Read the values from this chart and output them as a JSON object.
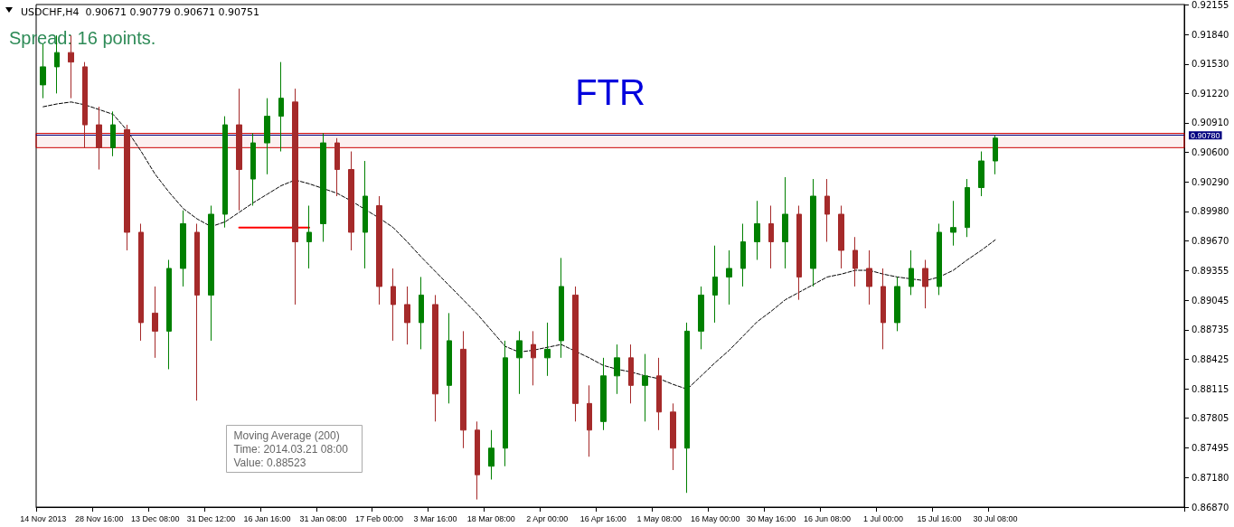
{
  "chart_data": {
    "type": "candlestick",
    "title": "USDCHF,H4  0.90671 0.90779 0.90671 0.90751",
    "categories": [
      "14 Nov 2013",
      null,
      null,
      null,
      "28 Nov 16:00",
      null,
      null,
      null,
      "13 Dec 08:00",
      null,
      null,
      null,
      "31 Dec 12:00",
      null,
      null,
      null,
      "16 Jan 16:00",
      null,
      null,
      null,
      "31 Jan 08:00",
      null,
      null,
      null,
      "17 Feb 00:00",
      null,
      null,
      null,
      "3 Mar 16:00",
      null,
      null,
      null,
      "18 Mar 08:00",
      null,
      null,
      null,
      "2 Apr 00:00",
      null,
      null,
      null,
      "16 Apr 16:00",
      null,
      null,
      null,
      "1 May 08:00",
      null,
      null,
      null,
      "16 May 00:00",
      null,
      null,
      null,
      "30 May 16:00",
      null,
      null,
      null,
      "16 Jun 08:00",
      null,
      null,
      null,
      "1 Jul 00:00",
      null,
      null,
      null,
      "15 Jul 16:00",
      null,
      null,
      null,
      "30 Jul 08:00",
      null,
      null,
      null,
      null,
      null,
      null,
      null,
      null,
      null,
      null,
      null,
      null,
      null
    ],
    "ylim": [
      0.8687,
      0.92155
    ],
    "yticks": [
      0.92155,
      {
        "value": 0.9184,
        "label": "0.91840"
      },
      {
        "value": 0.9153,
        "label": "0.91530"
      },
      {
        "value": 0.9122,
        "label": "0.91220"
      },
      {
        "value": 0.9091,
        "label": "0.90910"
      },
      {
        "value": 0.906,
        "label": "0.90600"
      },
      {
        "value": 0.9029,
        "label": "0.90290"
      },
      {
        "value": 0.8998,
        "label": "0.89980"
      },
      {
        "value": 0.8967,
        "label": "0.89670"
      },
      0.89355,
      0.89045,
      0.88735,
      0.88425,
      0.88115,
      0.87805,
      0.87495,
      {
        "value": 0.8718,
        "label": "0.87180"
      },
      {
        "value": 0.8687,
        "label": "0.86870"
      }
    ],
    "series": [
      {
        "type": "candlestick",
        "ohlc": [
          [
            0.9131,
            0.9174,
            0.9117,
            0.915
          ],
          [
            0.915,
            0.9183,
            0.9122,
            0.9165
          ],
          [
            0.9165,
            0.9183,
            0.9117,
            0.9155
          ],
          [
            0.915,
            0.9155,
            0.9065,
            0.9089
          ],
          [
            0.9089,
            0.9108,
            0.9042,
            0.9065
          ],
          [
            0.9065,
            0.9103,
            0.9056,
            0.9089
          ],
          [
            0.9084,
            0.9089,
            0.8957,
            0.8976
          ],
          [
            0.8976,
            0.8985,
            0.8862,
            0.8881
          ],
          [
            0.8891,
            0.8919,
            0.8844,
            0.8872
          ],
          [
            0.8872,
            0.8947,
            0.8832,
            0.8938
          ],
          [
            0.8938,
            0.8999,
            0.8919,
            0.8985
          ],
          [
            0.8976,
            0.8985,
            0.8799,
            0.891
          ],
          [
            0.891,
            0.9004,
            0.8862,
            0.8995
          ],
          [
            0.8995,
            0.9098,
            0.8981,
            0.9089
          ],
          [
            0.9089,
            0.9127,
            0.8999,
            0.9042
          ],
          [
            0.9032,
            0.908,
            0.9004,
            0.907
          ],
          [
            0.907,
            0.9117,
            0.9037,
            0.9098
          ],
          [
            0.9098,
            0.9155,
            0.9061,
            0.9117
          ],
          [
            0.9113,
            0.9127,
            0.89,
            0.8966
          ],
          [
            0.8966,
            0.9004,
            0.8938,
            0.8976
          ],
          [
            0.8985,
            0.908,
            0.8966,
            0.907
          ],
          [
            0.907,
            0.9075,
            0.9014,
            0.9042
          ],
          [
            0.9042,
            0.9061,
            0.8957,
            0.8976
          ],
          [
            0.8976,
            0.9051,
            0.8938,
            0.9014
          ],
          [
            0.9004,
            0.9014,
            0.89,
            0.8919
          ],
          [
            0.8919,
            0.8938,
            0.8862,
            0.89
          ],
          [
            0.89,
            0.8919,
            0.8858,
            0.8881
          ],
          [
            0.8881,
            0.8929,
            0.8853,
            0.891
          ],
          [
            0.89,
            0.891,
            0.8777,
            0.8806
          ],
          [
            0.8815,
            0.8891,
            0.8796,
            0.8862
          ],
          [
            0.8853,
            0.8872,
            0.8749,
            0.8768
          ],
          [
            0.8768,
            0.8777,
            0.8695,
            0.8721
          ],
          [
            0.873,
            0.8768,
            0.8716,
            0.8749
          ],
          [
            0.8749,
            0.8862,
            0.873,
            0.8844
          ],
          [
            0.8844,
            0.8872,
            0.8806,
            0.8862
          ],
          [
            0.8858,
            0.8872,
            0.8815,
            0.8844
          ],
          [
            0.8844,
            0.8881,
            0.8825,
            0.8853
          ],
          [
            0.8862,
            0.8949,
            0.8844,
            0.8919
          ],
          [
            0.891,
            0.8919,
            0.8777,
            0.8796
          ],
          [
            0.8796,
            0.8815,
            0.874,
            0.8768
          ],
          [
            0.8777,
            0.8844,
            0.8768,
            0.8825
          ],
          [
            0.8825,
            0.8858,
            0.8806,
            0.8844
          ],
          [
            0.8844,
            0.8858,
            0.8796,
            0.8815
          ],
          [
            0.8815,
            0.8848,
            0.8777,
            0.8825
          ],
          [
            0.8825,
            0.8844,
            0.8768,
            0.8787
          ],
          [
            0.8787,
            0.8796,
            0.8726,
            0.8749
          ],
          [
            0.8749,
            0.8881,
            0.8702,
            0.8872
          ],
          [
            0.8872,
            0.8919,
            0.8853,
            0.891
          ],
          [
            0.891,
            0.8962,
            0.8881,
            0.8929
          ],
          [
            0.8929,
            0.8957,
            0.89,
            0.8938
          ],
          [
            0.8938,
            0.8985,
            0.8919,
            0.8966
          ],
          [
            0.8966,
            0.9009,
            0.8947,
            0.8985
          ],
          [
            0.8985,
            0.9004,
            0.8938,
            0.8966
          ],
          [
            0.8966,
            0.9034,
            0.8938,
            0.8995
          ],
          [
            0.8995,
            0.9004,
            0.8905,
            0.8929
          ],
          [
            0.8938,
            0.9032,
            0.8919,
            0.9014
          ],
          [
            0.9014,
            0.9032,
            0.8966,
            0.8995
          ],
          [
            0.8995,
            0.9004,
            0.8938,
            0.8957
          ],
          [
            0.8957,
            0.8971,
            0.8919,
            0.8938
          ],
          [
            0.8938,
            0.8957,
            0.89,
            0.8919
          ],
          [
            0.8919,
            0.8938,
            0.8853,
            0.8881
          ],
          [
            0.8881,
            0.8929,
            0.8872,
            0.8919
          ],
          [
            0.8919,
            0.8957,
            0.891,
            0.8938
          ],
          [
            0.8938,
            0.8947,
            0.8896,
            0.8919
          ],
          [
            0.8919,
            0.8985,
            0.891,
            0.8976
          ],
          [
            0.8976,
            0.9009,
            0.8962,
            0.8981
          ],
          [
            0.8981,
            0.9032,
            0.8971,
            0.9023
          ],
          [
            0.9023,
            0.9061,
            0.9014,
            0.9051
          ],
          [
            0.9051,
            0.9078,
            0.9037,
            0.9075
          ],
          null,
          null,
          null,
          null,
          null,
          null,
          null,
          null,
          null,
          null,
          null,
          null,
          null
        ],
        "colors": [
          "#008000",
          "#008000",
          "#a52a2a",
          "#a52a2a",
          "#a52a2a",
          "#008000",
          "#a52a2a",
          "#a52a2a",
          "#a52a2a",
          "#008000",
          "#008000",
          "#a52a2a",
          "#008000",
          "#008000",
          "#a52a2a",
          "#008000",
          "#008000",
          "#008000",
          "#a52a2a",
          "#008000",
          "#008000",
          "#a52a2a",
          "#a52a2a",
          "#008000",
          "#a52a2a",
          "#a52a2a",
          "#a52a2a",
          "#008000",
          "#a52a2a",
          "#008000",
          "#a52a2a",
          "#a52a2a",
          "#008000",
          "#008000",
          "#008000",
          "#a52a2a",
          "#008000",
          "#008000",
          "#a52a2a",
          "#a52a2a",
          "#008000",
          "#008000",
          "#a52a2a",
          "#008000",
          "#a52a2a",
          "#a52a2a",
          "#008000",
          "#008000",
          "#008000",
          "#008000",
          "#008000",
          "#008000",
          "#a52a2a",
          "#008000",
          "#a52a2a",
          "#008000",
          "#a52a2a",
          "#a52a2a",
          "#a52a2a",
          "#a52a2a",
          "#a52a2a",
          "#008000",
          "#008000",
          "#a52a2a",
          "#008000",
          "#008000",
          "#008000",
          "#008000",
          "#008000",
          null,
          null,
          null,
          null,
          null,
          null,
          null,
          null,
          null,
          null,
          null,
          null,
          null
        ]
      },
      {
        "type": "line",
        "color": "#000000",
        "line_style": "dashed",
        "marker": "none",
        "values": [
          0.9108,
          0.9111,
          0.9113,
          0.911,
          0.9105,
          0.91,
          0.9083,
          0.9061,
          0.9037,
          0.9018,
          0.9001,
          0.899,
          0.8982,
          0.8987,
          0.8997,
          0.9007,
          0.9016,
          0.9025,
          0.9031,
          0.9027,
          0.9022,
          0.9017,
          0.9009,
          0.9,
          0.8991,
          0.8981,
          0.8966,
          0.895,
          0.8935,
          0.892,
          0.8905,
          0.889,
          0.8873,
          0.8856,
          0.885,
          0.8852,
          0.8855,
          0.8858,
          0.8851,
          0.8844,
          0.8836,
          0.8832,
          0.8829,
          0.8825,
          0.8822,
          0.8816,
          0.8811,
          0.8825,
          0.8839,
          0.8852,
          0.8867,
          0.8882,
          0.8893,
          0.8905,
          0.8913,
          0.8921,
          0.8929,
          0.8932,
          0.8936,
          0.8936,
          0.8932,
          0.8929,
          0.8927,
          0.8925,
          0.8929,
          0.8936,
          0.8947,
          0.8957,
          0.8968,
          null,
          null,
          null,
          null,
          null,
          null,
          null,
          null,
          null,
          null,
          null,
          null,
          null
        ]
      },
      {
        "type": "line",
        "color": "#ff0000",
        "line_style": "solid",
        "marker": "none",
        "values": [
          null,
          null,
          null,
          null,
          null,
          null,
          null,
          null,
          null,
          null,
          null,
          null,
          null,
          null,
          0.8981,
          0.8981,
          0.8981,
          0.8981,
          0.8981,
          0.8981,
          null,
          null,
          null,
          null,
          null,
          null,
          null,
          null,
          null,
          null,
          null,
          null,
          null,
          null,
          null,
          null,
          null,
          null,
          null,
          null,
          null,
          null,
          null,
          null,
          null,
          null,
          null,
          null,
          null,
          null,
          null,
          null,
          null,
          null,
          null,
          null,
          null,
          null,
          null,
          null,
          null,
          null,
          null,
          null,
          null,
          null,
          null,
          null,
          null,
          null,
          null,
          null,
          null,
          null,
          null,
          null,
          null,
          null,
          null,
          null,
          null,
          null
        ]
      }
    ],
    "bands": [
      {
        "axis": "y",
        "from": 0.9065,
        "to": 0.908,
        "label": "FTR",
        "color": "#cc0000"
      }
    ],
    "ref_lines": [
      {
        "axis": "y",
        "value": 0.9078,
        "label": "0.90780",
        "color": "#000080"
      }
    ],
    "annotations": [
      "Spread: 16 points.",
      "Moving Average (200)",
      "Time: 2014.03.21 08:00",
      "Value: 0.88523"
    ]
  }
}
